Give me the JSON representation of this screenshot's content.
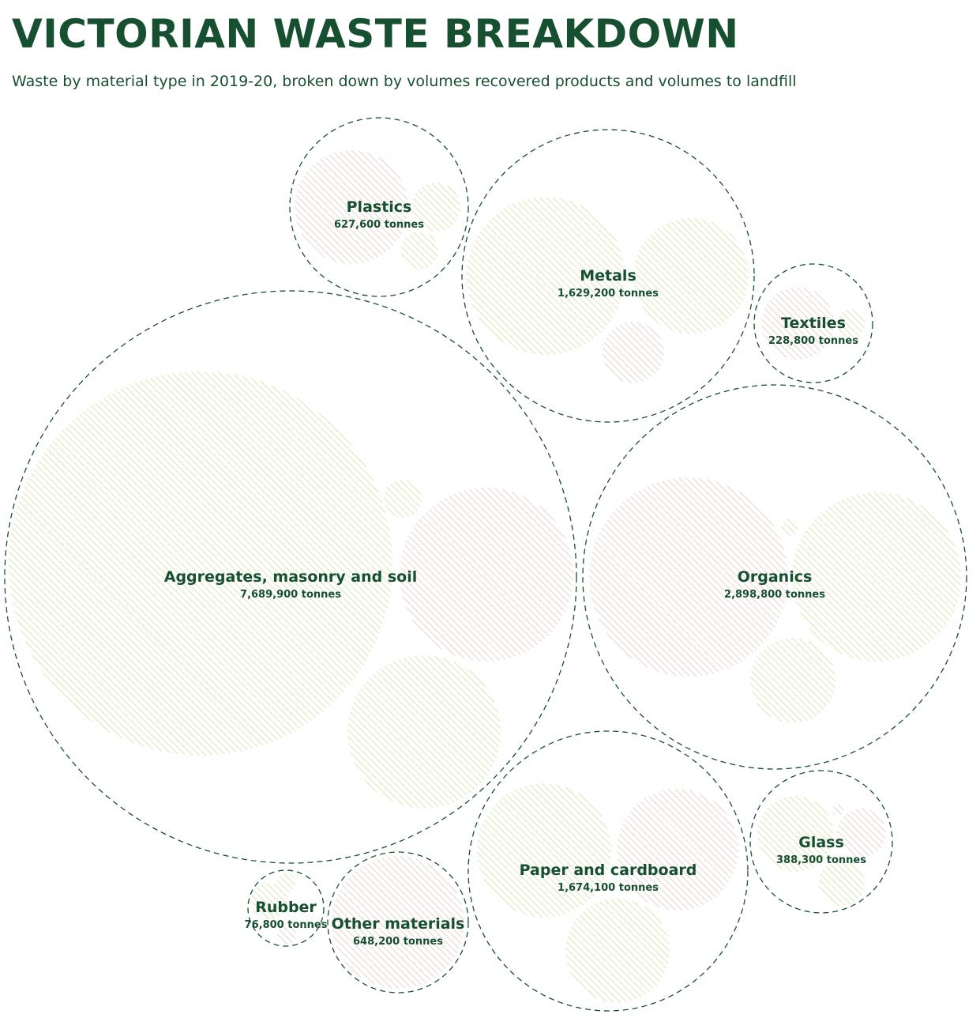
{
  "title": "VICTORIAN WASTE BREAKDOWN",
  "subtitle": "Waste by material type in 2019-20, broken down by volumes recovered products and volumes to landfill",
  "colors": {
    "text": "#174f31",
    "outline": "#174f31",
    "recovered_hatch": "#dce8b8",
    "landfill_hatch": "#e8d6d2"
  },
  "chart_data": {
    "type": "packed-bubble",
    "unit": "tonnes",
    "materials": [
      {
        "name": "Aggregates, masonry and soil",
        "value": 7689900,
        "value_label": "7,689,900 tonnes"
      },
      {
        "name": "Organics",
        "value": 2898800,
        "value_label": "2,898,800 tonnes"
      },
      {
        "name": "Paper and cardboard",
        "value": 1674100,
        "value_label": "1,674,100 tonnes"
      },
      {
        "name": "Metals",
        "value": 1629200,
        "value_label": "1,629,200 tonnes"
      },
      {
        "name": "Other materials",
        "value": 648200,
        "value_label": "648,200 tonnes"
      },
      {
        "name": "Plastics",
        "value": 627600,
        "value_label": "627,600 tonnes"
      },
      {
        "name": "Glass",
        "value": 388300,
        "value_label": "388,300 tonnes"
      },
      {
        "name": "Textiles",
        "value": 228800,
        "value_label": "228,800 tonnes"
      },
      {
        "name": "Rubber",
        "value": 76800,
        "value_label": "76,800 tonnes"
      }
    ]
  }
}
